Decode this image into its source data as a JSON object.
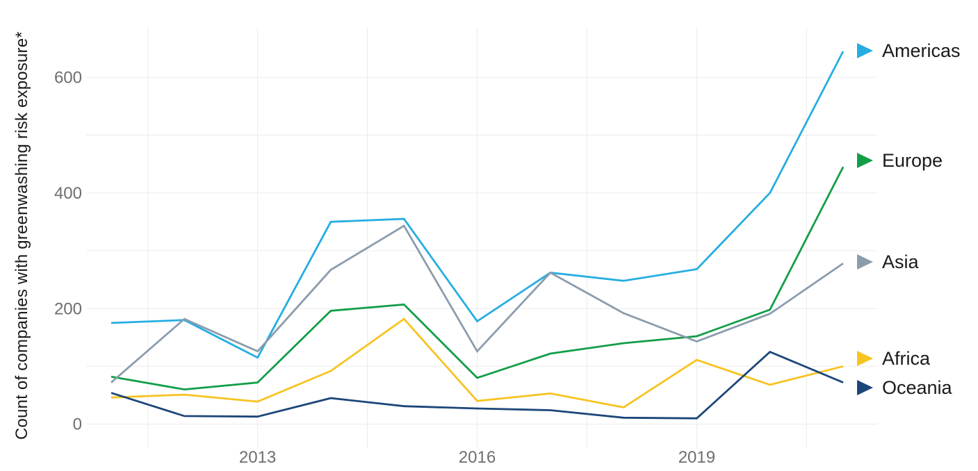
{
  "chart_data": {
    "type": "line",
    "title": "",
    "xlabel": "",
    "ylabel": "Count of companies with greenwashing risk exposure*",
    "x": [
      2011,
      2012,
      2013,
      2014,
      2015,
      2016,
      2017,
      2018,
      2019,
      2020,
      2021
    ],
    "x_tick_labels": [
      "2013",
      "2016",
      "2019"
    ],
    "x_tick_positions": [
      2013,
      2016,
      2019
    ],
    "x_gridlines": [
      2011.5,
      2013,
      2014.5,
      2016,
      2017.5,
      2019,
      2020.5
    ],
    "y_ticks": [
      0,
      200,
      400,
      600
    ],
    "y_gridlines": [
      0,
      100,
      200,
      300,
      400,
      500,
      600
    ],
    "ylim": [
      0,
      700
    ],
    "grid": "both",
    "legend_position": "right",
    "legend_marker": "right-triangle",
    "grid_color": "#ebebeb",
    "tick_color": "#6e6e6e",
    "text_color": "#1a1a1a",
    "series": [
      {
        "name": "Americas",
        "color": "#25ade2",
        "values": [
          175,
          180,
          115,
          350,
          355,
          178,
          262,
          248,
          268,
          400,
          645
        ]
      },
      {
        "name": "Europe",
        "color": "#119e48",
        "values": [
          82,
          60,
          72,
          196,
          207,
          80,
          122,
          140,
          152,
          198,
          445
        ]
      },
      {
        "name": "Asia",
        "color": "#8b9cac",
        "values": [
          72,
          182,
          126,
          267,
          343,
          126,
          262,
          192,
          143,
          191,
          278
        ]
      },
      {
        "name": "Africa",
        "color": "#f7c320",
        "values": [
          46,
          51,
          39,
          92,
          182,
          40,
          53,
          29,
          111,
          68,
          100
        ]
      },
      {
        "name": "Oceania",
        "color": "#1c4679",
        "values": [
          54,
          14,
          13,
          45,
          31,
          27,
          24,
          11,
          10,
          125,
          72
        ]
      }
    ]
  }
}
